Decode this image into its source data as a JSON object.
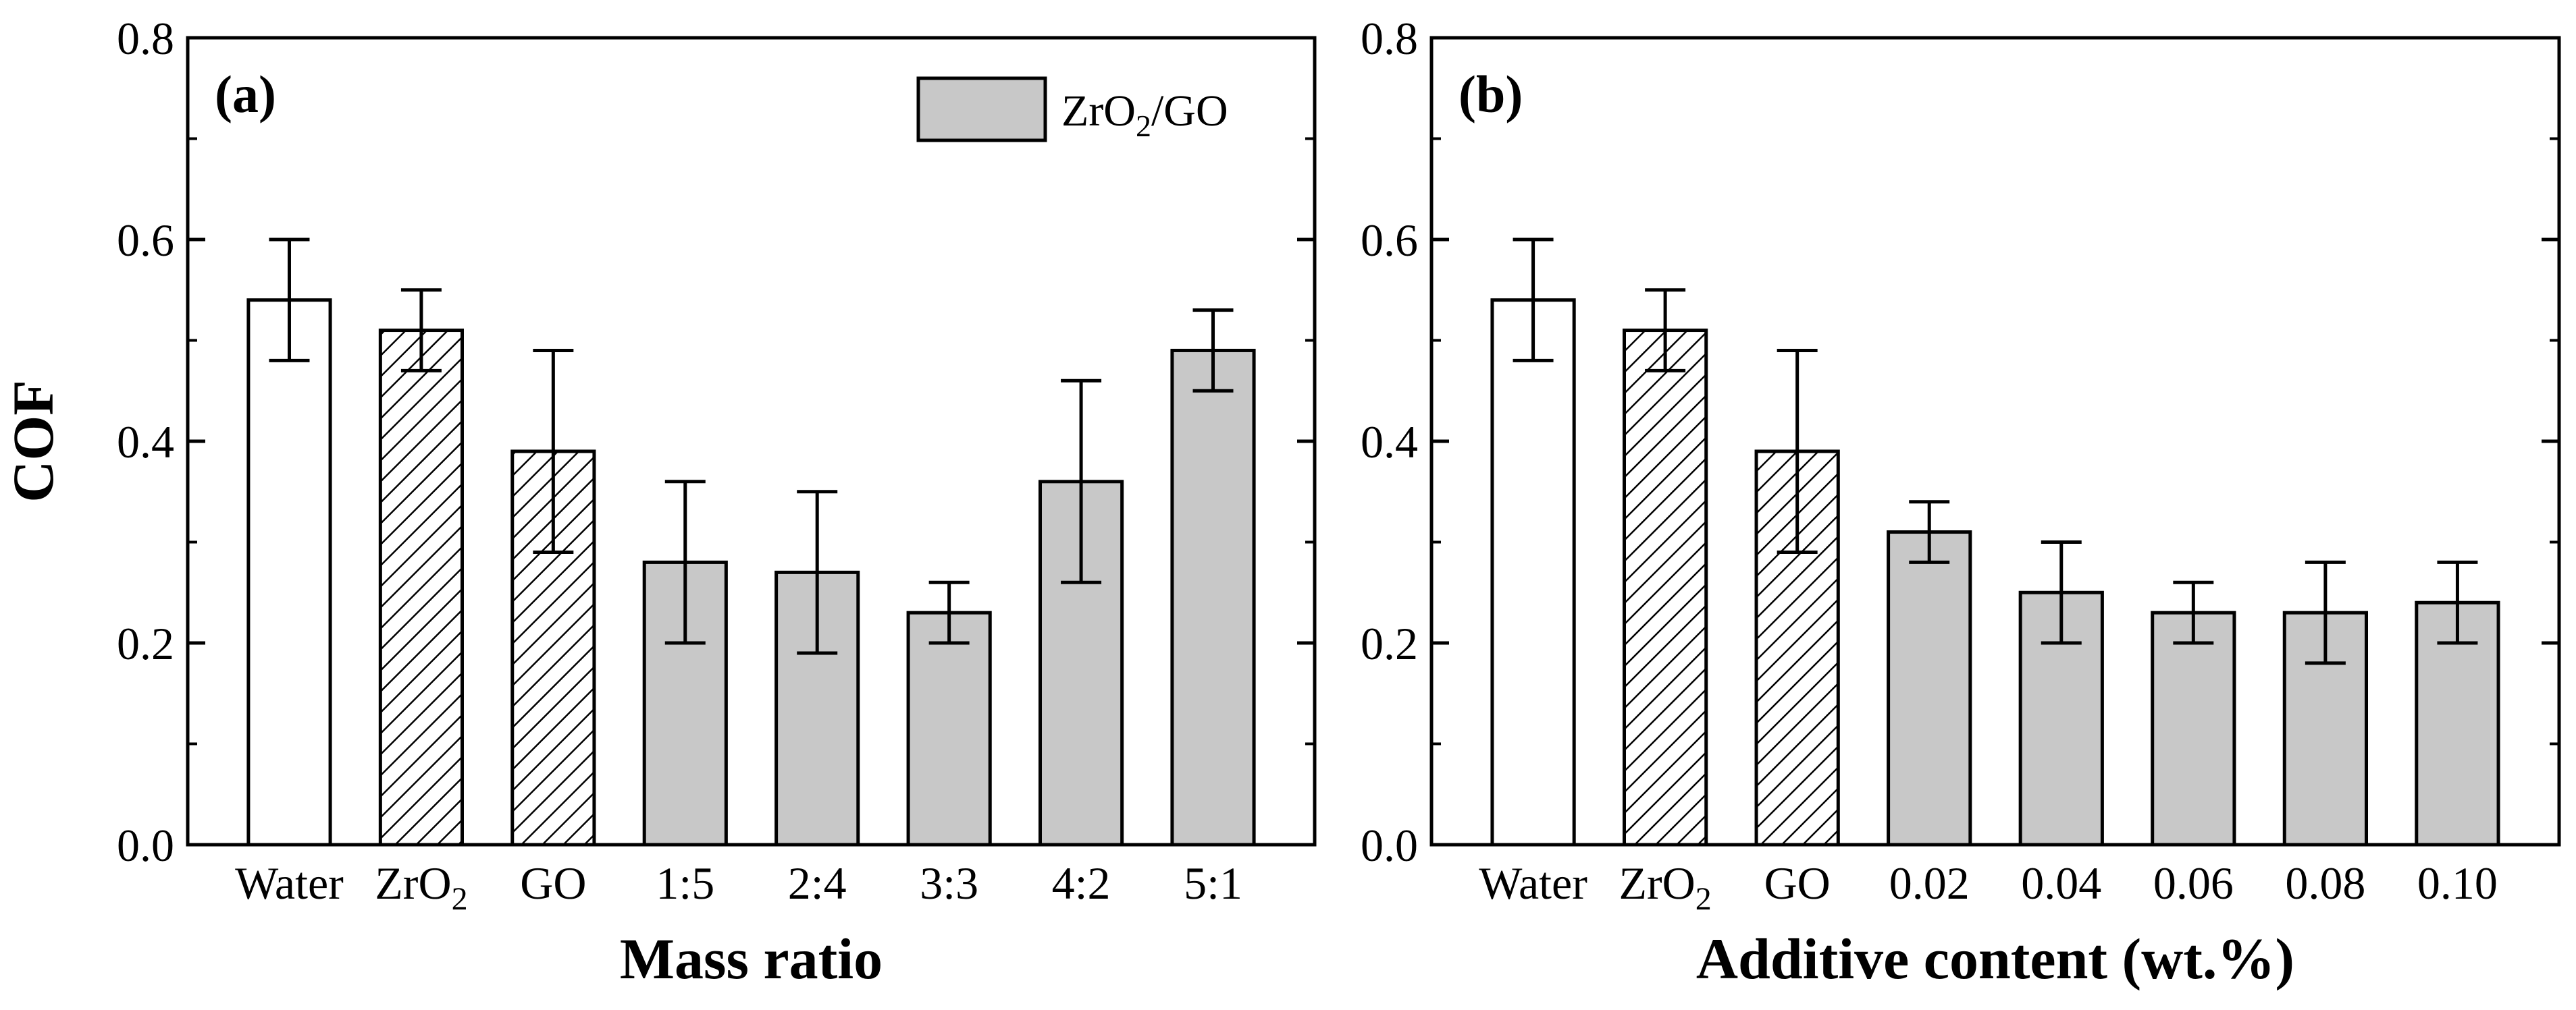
{
  "chart_data": [
    {
      "type": "bar",
      "panel_label": "(a)",
      "categories": [
        {
          "main": "Water",
          "sub": ""
        },
        {
          "main": "ZrO",
          "sub": "2"
        },
        {
          "main": "GO",
          "sub": ""
        },
        {
          "main": "1:5",
          "sub": ""
        },
        {
          "main": "2:4",
          "sub": ""
        },
        {
          "main": "3:3",
          "sub": ""
        },
        {
          "main": "4:2",
          "sub": ""
        },
        {
          "main": "5:1",
          "sub": ""
        }
      ],
      "values": [
        0.54,
        0.51,
        0.39,
        0.28,
        0.27,
        0.23,
        0.36,
        0.49
      ],
      "errors": [
        0.06,
        0.04,
        0.1,
        0.08,
        0.08,
        0.03,
        0.1,
        0.04
      ],
      "fills": [
        "white",
        "hatch",
        "hatch",
        "gray",
        "gray",
        "gray",
        "gray",
        "gray"
      ],
      "xlabel": "Mass ratio",
      "ylabel": "COF",
      "ylim": [
        0.0,
        0.8
      ],
      "yticks": [
        "0.0",
        "0.2",
        "0.4",
        "0.6",
        "0.8"
      ],
      "legend": {
        "main": "ZrO",
        "sub": "2",
        "rest": "/GO",
        "position": "top-right"
      }
    },
    {
      "type": "bar",
      "panel_label": "(b)",
      "categories": [
        {
          "main": "Water",
          "sub": ""
        },
        {
          "main": "ZrO",
          "sub": "2"
        },
        {
          "main": "GO",
          "sub": ""
        },
        {
          "main": "0.02",
          "sub": ""
        },
        {
          "main": "0.04",
          "sub": ""
        },
        {
          "main": "0.06",
          "sub": ""
        },
        {
          "main": "0.08",
          "sub": ""
        },
        {
          "main": "0.10",
          "sub": ""
        }
      ],
      "values": [
        0.54,
        0.51,
        0.39,
        0.31,
        0.25,
        0.23,
        0.23,
        0.24
      ],
      "errors": [
        0.06,
        0.04,
        0.1,
        0.03,
        0.05,
        0.03,
        0.05,
        0.04
      ],
      "fills": [
        "white",
        "hatch",
        "hatch",
        "gray",
        "gray",
        "gray",
        "gray",
        "gray"
      ],
      "xlabel": "Additive content (wt.%)",
      "ylabel": "",
      "ylim": [
        0.0,
        0.8
      ],
      "yticks": [
        "0.0",
        "0.2",
        "0.4",
        "0.6",
        "0.8"
      ]
    }
  ],
  "colors": {
    "bar_gray": "#c8c8c8",
    "bar_white": "#ffffff",
    "stroke": "#000000"
  }
}
